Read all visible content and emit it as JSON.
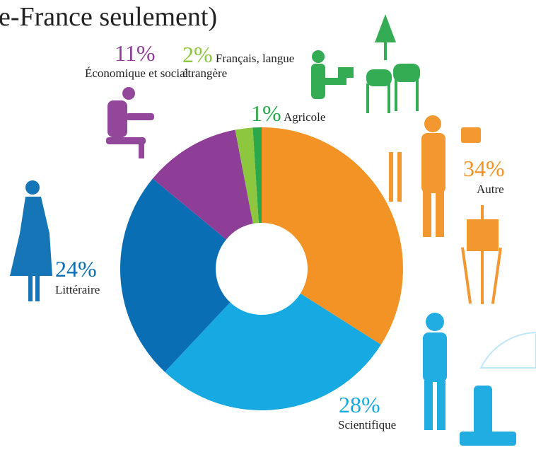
{
  "chart_data": {
    "type": "donut",
    "title": "e-France seulement)",
    "categories": [
      "Autre",
      "Scientifique",
      "Littéraire",
      "Économique et social",
      "Français, langue étrangère",
      "Agricole"
    ],
    "values": [
      34,
      28,
      24,
      11,
      2,
      1
    ],
    "value_labels": [
      "34%",
      "28%",
      "24%",
      "11%",
      "2%",
      "1%"
    ],
    "colors": [
      "#f39325",
      "#17a9e1",
      "#0a6eb4",
      "#8e3e96",
      "#8dc63f",
      "#2aa84a"
    ]
  }
}
